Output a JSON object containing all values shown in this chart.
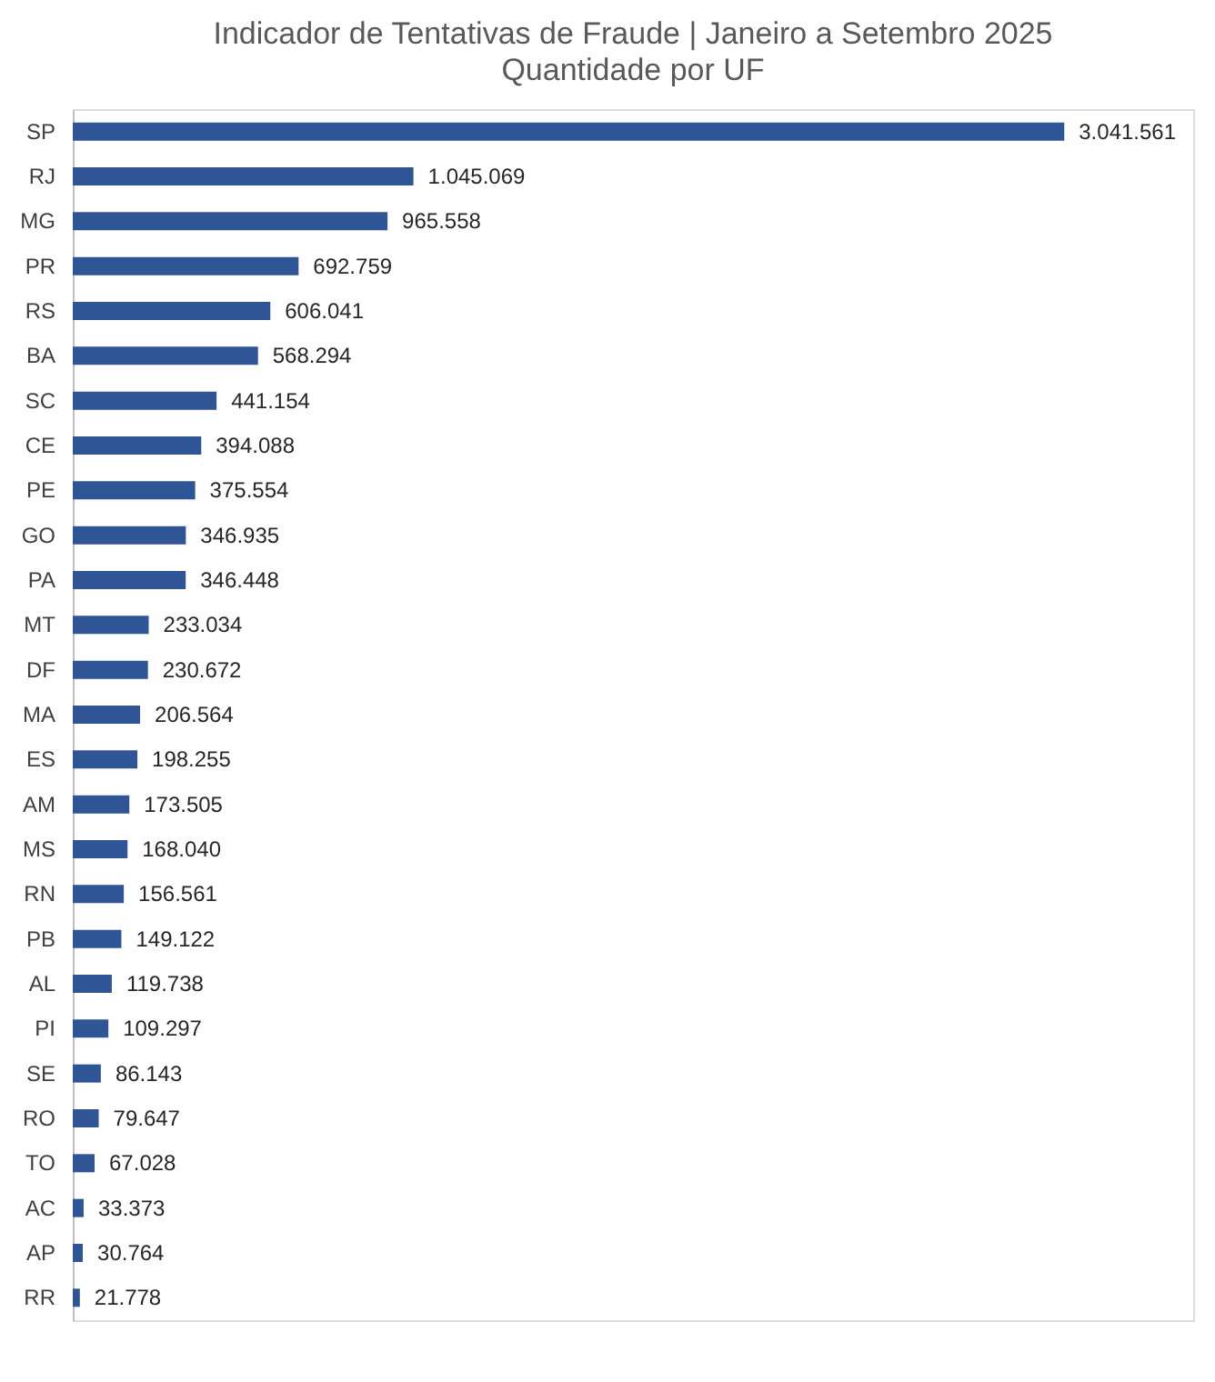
{
  "chart_data": {
    "type": "bar",
    "orientation": "horizontal",
    "title": "Indicador de Tentativas de Fraude | Janeiro a Setembro 2025",
    "subtitle": "Quantidade por UF",
    "color": "#2f5597",
    "tick_labels": "y",
    "categories": [
      "SP",
      "RJ",
      "MG",
      "PR",
      "RS",
      "BA",
      "SC",
      "CE",
      "PE",
      "GO",
      "PA",
      "MT",
      "DF",
      "MA",
      "ES",
      "AM",
      "MS",
      "RN",
      "PB",
      "AL",
      "PI",
      "SE",
      "RO",
      "TO",
      "AC",
      "AP",
      "RR"
    ],
    "values": [
      3041561,
      1045069,
      965558,
      692759,
      606041,
      568294,
      441154,
      394088,
      375554,
      346935,
      346448,
      233034,
      230672,
      206564,
      198255,
      173505,
      168040,
      156561,
      149122,
      119738,
      109297,
      86143,
      79647,
      67028,
      33373,
      30764,
      21778
    ],
    "value_labels": [
      "3.041.561",
      "1.045.069",
      "965.558",
      "692.759",
      "606.041",
      "568.294",
      "441.154",
      "394.088",
      "375.554",
      "346.935",
      "346.448",
      "233.034",
      "230.672",
      "206.564",
      "198.255",
      "173.505",
      "168.040",
      "156.561",
      "149.122",
      "119.738",
      "109.297",
      "86.143",
      "79.647",
      "67.028",
      "33.373",
      "30.764",
      "21.778"
    ]
  }
}
